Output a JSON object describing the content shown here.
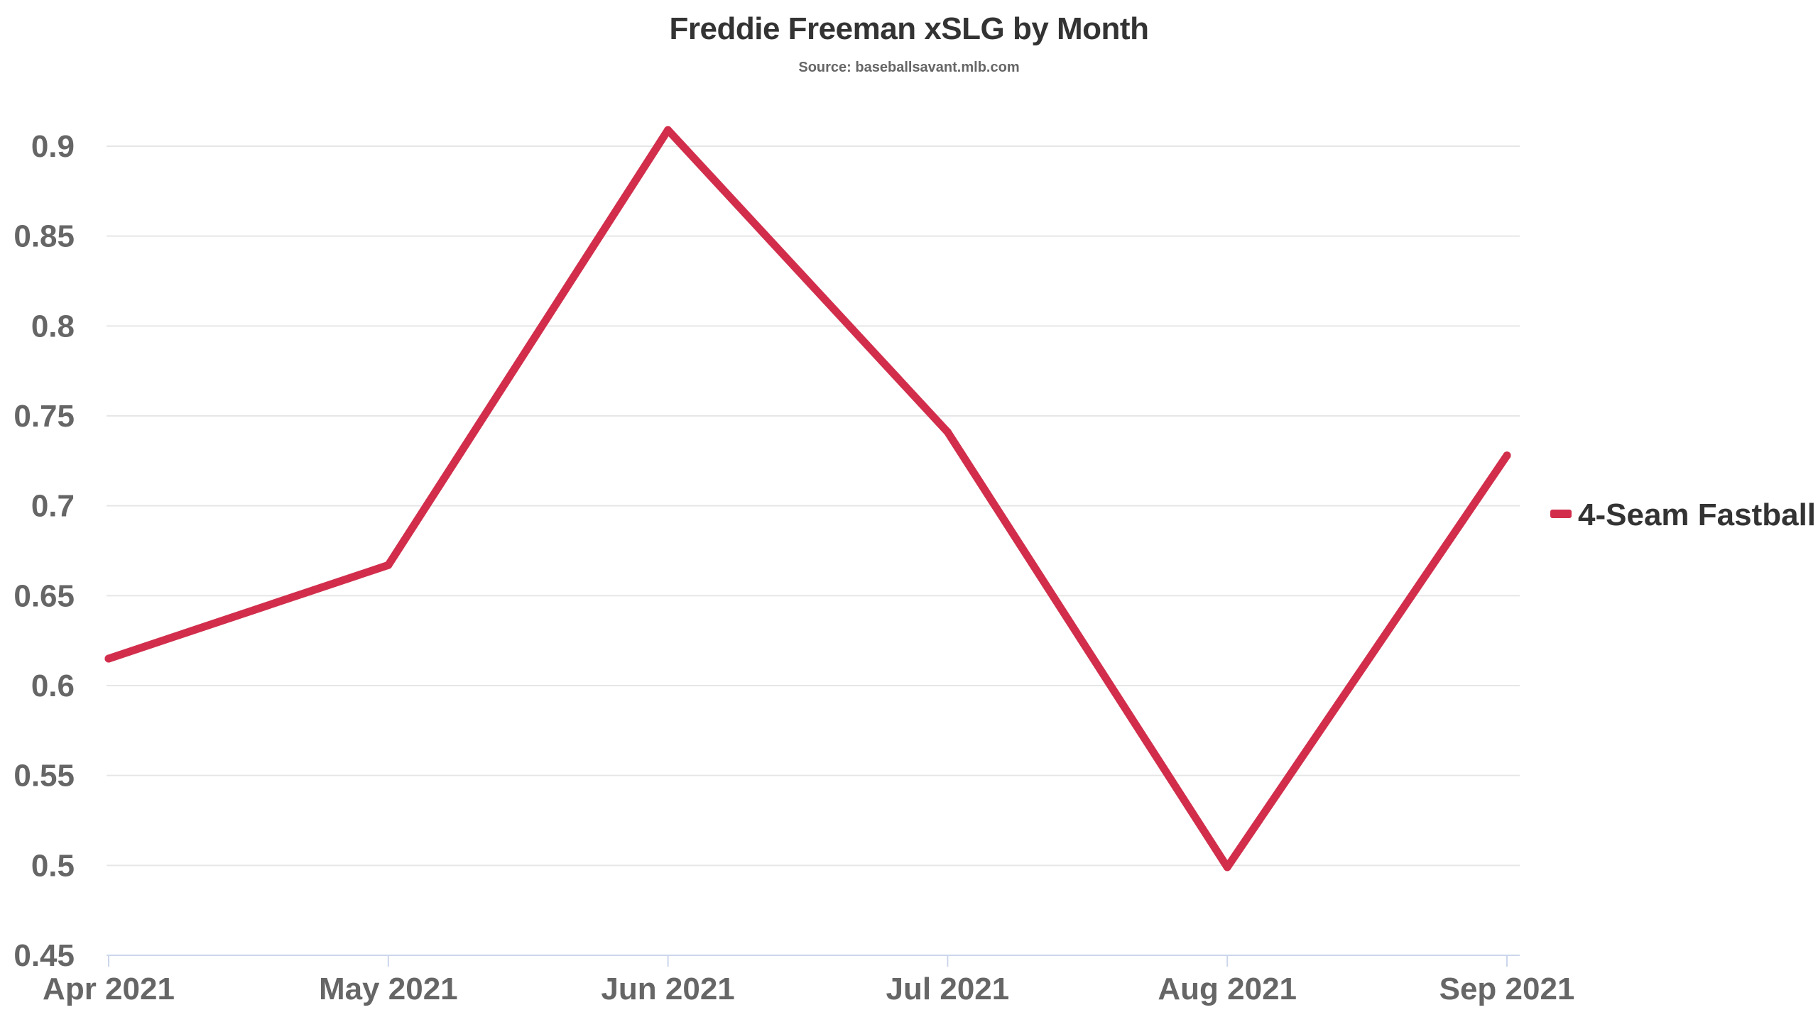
{
  "chart_data": {
    "type": "line",
    "title": "Freddie Freeman xSLG by Month",
    "subtitle": "Source: baseballsavant.mlb.com",
    "xlabel": "",
    "ylabel": "",
    "categories": [
      "Apr 2021",
      "May 2021",
      "Jun 2021",
      "Jul 2021",
      "Aug 2021",
      "Sep 2021"
    ],
    "series": [
      {
        "name": "4-Seam Fastball",
        "values": [
          0.615,
          0.667,
          0.909,
          0.741,
          0.499,
          0.728
        ],
        "color": "#d22e4c"
      }
    ],
    "ylim": [
      0.45,
      0.9
    ],
    "yticks": [
      "0.45",
      "0.5",
      "0.55",
      "0.6",
      "0.65",
      "0.7",
      "0.75",
      "0.8",
      "0.85",
      "0.9"
    ],
    "grid": true,
    "legend_position": "right"
  },
  "colors": {
    "grid": "#e6e6e6",
    "axis": "#ccd6eb",
    "tick_text": "#666666",
    "title_text": "#333333"
  }
}
